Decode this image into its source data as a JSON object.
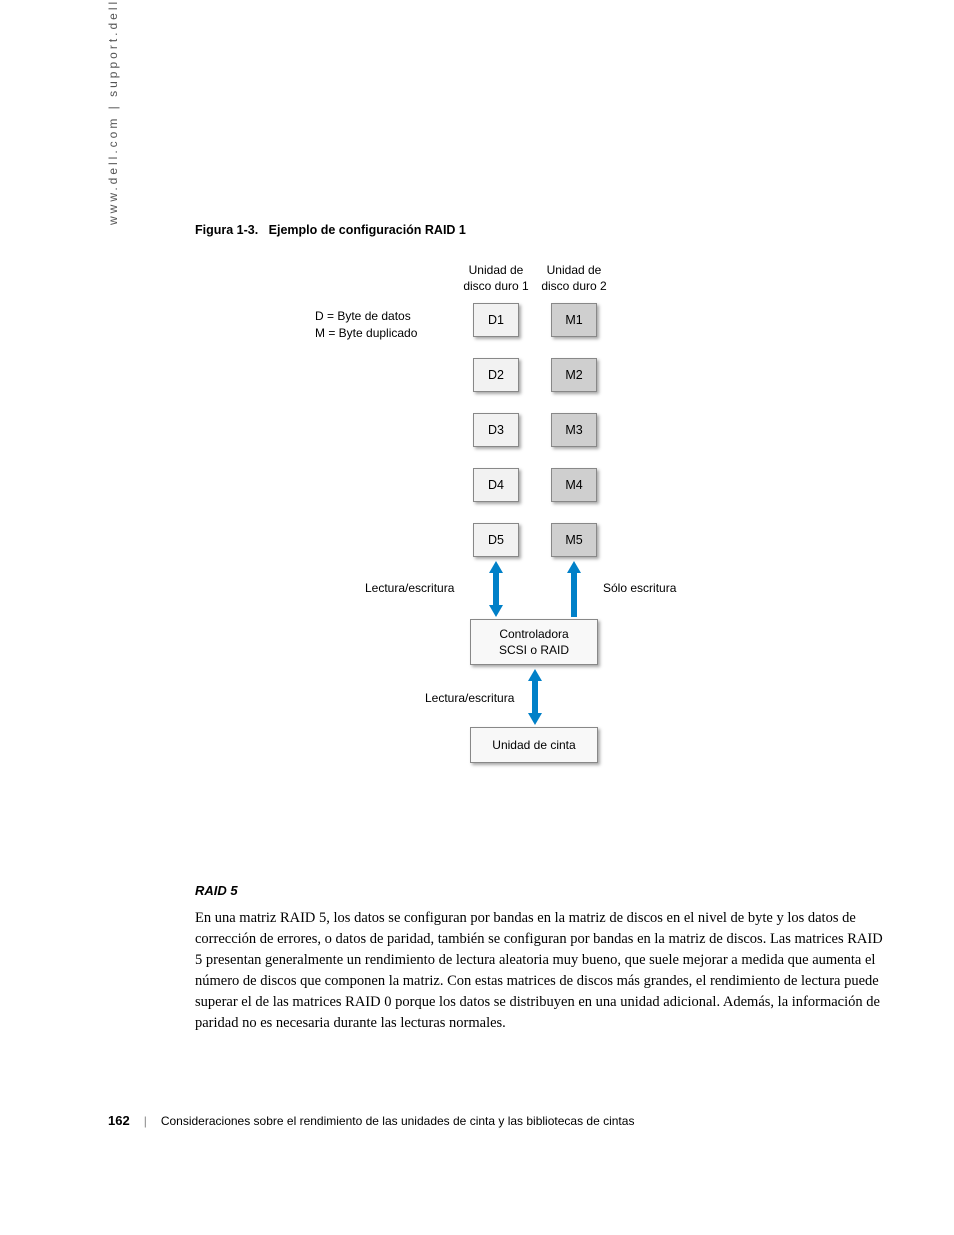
{
  "sidebar": {
    "url": "www.dell.com | support.dell.com"
  },
  "figure": {
    "caption_prefix": "Figura 1-3.",
    "caption_title": "Ejemplo de configuración RAID 1",
    "col1_header": "Unidad de\ndisco duro 1",
    "col2_header": "Unidad de\ndisco duro 2",
    "legend_d": "D = Byte de datos",
    "legend_m": "M = Byte duplicado",
    "col1_cells": [
      "D1",
      "D2",
      "D3",
      "D4",
      "D5"
    ],
    "col2_cells": [
      "M1",
      "M2",
      "M3",
      "M4",
      "M5"
    ],
    "label_rw": "Lectura/escritura",
    "label_wo": "Sólo escritura",
    "controller_label": "Controladora\nSCSI o RAID",
    "tape_label": "Unidad de cinta",
    "arrow_color": "#0080c8",
    "cell_d_bg": "#f2f2f2",
    "cell_m_bg": "#cfcfcf"
  },
  "section": {
    "heading": "RAID 5",
    "body": "En una matriz RAID 5, los datos se configuran por bandas en la matriz de discos en el nivel de byte y los datos de corrección de errores, o datos de paridad, también se configuran por bandas en la matriz de discos. Las matrices RAID 5 presentan generalmente un rendimiento de lectura aleatoria muy bueno, que suele mejorar a medida que aumenta el número de discos que componen la matriz. Con estas matrices de discos más grandes, el rendimiento de lectura puede superar el de las matrices RAID 0 porque los datos se distribuyen en una unidad adicional. Además, la información de paridad no es necesaria durante las lecturas normales."
  },
  "footer": {
    "page": "162",
    "title": "Consideraciones sobre el rendimiento de las unidades de cinta y las bibliotecas de cintas"
  }
}
